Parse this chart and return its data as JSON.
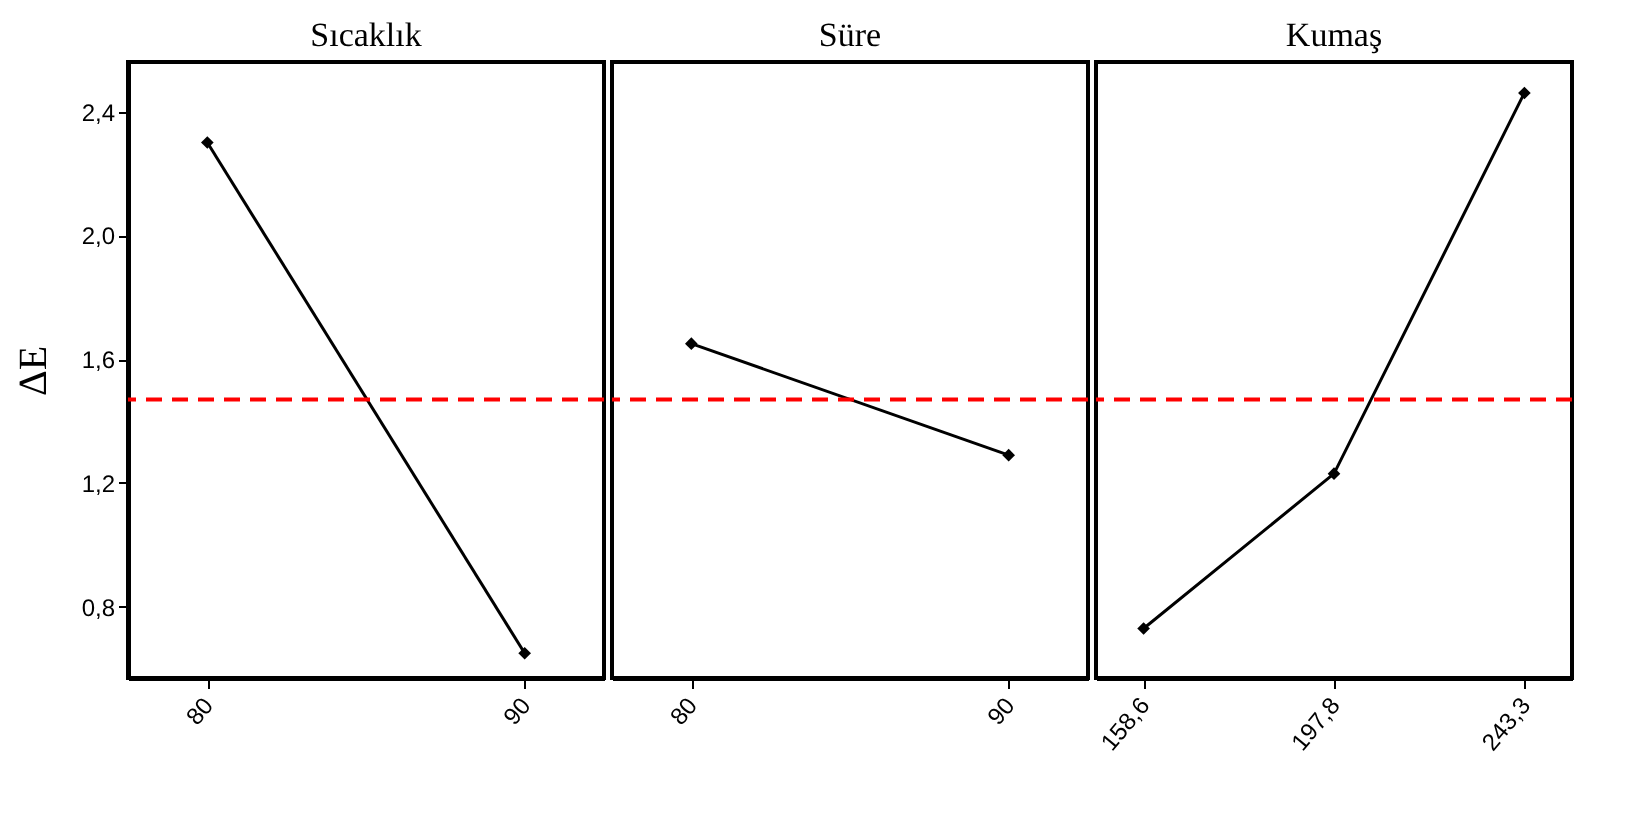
{
  "chart_data": [
    {
      "type": "line",
      "title": "Sıcaklık",
      "ylabel": "ΔE",
      "categories": [
        "80",
        "90"
      ],
      "values": [
        2.3,
        0.65
      ],
      "color": "#000000",
      "marker": "diamond",
      "line_style": "solid",
      "ylim": [
        0.57,
        2.56
      ],
      "yticks": [
        {
          "value": 0.8,
          "label": "0,8"
        },
        {
          "value": 1.2,
          "label": "1,2"
        },
        {
          "value": 1.6,
          "label": "1,6"
        },
        {
          "value": 2.0,
          "label": "2,0"
        },
        {
          "value": 2.4,
          "label": "2,4"
        }
      ],
      "ref_lines": [
        {
          "axis": "y",
          "value": 1.47,
          "color": "#ff0000",
          "line_style": "dashed"
        }
      ],
      "grid": false
    },
    {
      "type": "line",
      "title": "Süre",
      "categories": [
        "80",
        "90"
      ],
      "values": [
        1.65,
        1.29
      ],
      "color": "#000000",
      "marker": "diamond",
      "line_style": "solid",
      "ylim": [
        0.57,
        2.56
      ],
      "tick_labels": "x",
      "ref_lines": [
        {
          "axis": "y",
          "value": 1.47,
          "color": "#ff0000",
          "line_style": "dashed"
        }
      ],
      "grid": false
    },
    {
      "type": "line",
      "title": "Kumaş",
      "categories": [
        "158,6",
        "197,8",
        "243,3"
      ],
      "values": [
        0.73,
        1.23,
        2.46
      ],
      "color": "#000000",
      "marker": "diamond",
      "line_style": "solid",
      "ylim": [
        0.57,
        2.56
      ],
      "tick_labels": "x",
      "ref_lines": [
        {
          "axis": "y",
          "value": 1.47,
          "color": "#ff0000",
          "line_style": "dashed"
        }
      ],
      "grid": false
    }
  ]
}
